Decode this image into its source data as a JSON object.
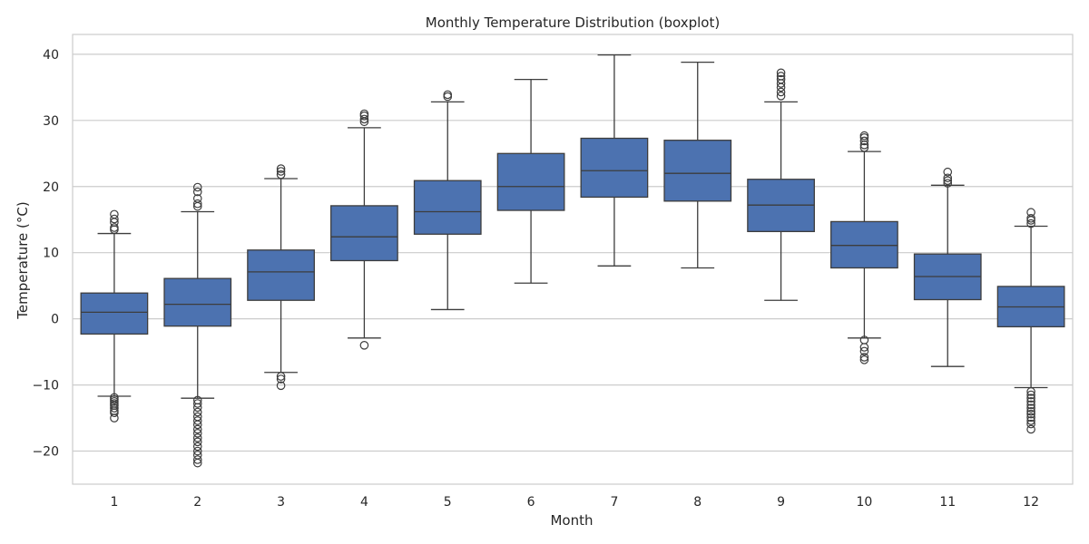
{
  "chart_data": {
    "type": "boxplot",
    "title": "Monthly Temperature Distribution (boxplot)",
    "xlabel": "Month",
    "ylabel": "Temperature (°C)",
    "ylim": [
      -25,
      43
    ],
    "yticks": [
      -20,
      -10,
      0,
      10,
      20,
      30,
      40
    ],
    "grid": true,
    "colors": {
      "box_fill": "#4c72b0",
      "line": "#3d3d3d",
      "grid": "#cccccc",
      "frame": "#cccccc"
    },
    "categories": [
      "1",
      "2",
      "3",
      "4",
      "5",
      "6",
      "7",
      "8",
      "9",
      "10",
      "11",
      "12"
    ],
    "boxes": [
      {
        "label": "1",
        "whisker_low": -11.7,
        "q1": -2.3,
        "median": 1.0,
        "q3": 3.9,
        "whisker_high": 12.9,
        "outliers": [
          13.5,
          13.8,
          14.6,
          15.1,
          15.8,
          -11.9,
          -12.2,
          -12.5,
          -12.8,
          -13.1,
          -13.5,
          -13.9,
          -14.2,
          -15.0
        ]
      },
      {
        "label": "2",
        "whisker_low": -12.0,
        "q1": -1.1,
        "median": 2.2,
        "q3": 6.1,
        "whisker_high": 16.2,
        "outliers": [
          17.0,
          17.4,
          18.2,
          19.2,
          19.9,
          -12.3,
          -12.8,
          -13.4,
          -14.1,
          -14.8,
          -15.4,
          -16.0,
          -16.7,
          -17.3,
          -18.0,
          -18.6,
          -19.3,
          -20.0,
          -20.6,
          -21.3,
          -21.8
        ]
      },
      {
        "label": "3",
        "whisker_low": -8.1,
        "q1": 2.8,
        "median": 7.1,
        "q3": 10.4,
        "whisker_high": 21.2,
        "outliers": [
          21.8,
          22.3,
          22.7,
          -8.7,
          -9.1,
          -10.1
        ]
      },
      {
        "label": "4",
        "whisker_low": -2.9,
        "q1": 8.8,
        "median": 12.4,
        "q3": 17.1,
        "whisker_high": 28.9,
        "outliers": [
          29.8,
          30.2,
          30.7,
          31.0,
          -4.0
        ]
      },
      {
        "label": "5",
        "whisker_low": 1.4,
        "q1": 12.8,
        "median": 16.2,
        "q3": 20.9,
        "whisker_high": 32.8,
        "outliers": [
          33.6,
          33.9
        ]
      },
      {
        "label": "6",
        "whisker_low": 5.4,
        "q1": 16.4,
        "median": 20.0,
        "q3": 25.0,
        "whisker_high": 36.2,
        "outliers": []
      },
      {
        "label": "7",
        "whisker_low": 8.0,
        "q1": 18.4,
        "median": 22.4,
        "q3": 27.3,
        "whisker_high": 39.9,
        "outliers": []
      },
      {
        "label": "8",
        "whisker_low": 7.7,
        "q1": 17.8,
        "median": 22.0,
        "q3": 27.0,
        "whisker_high": 38.8,
        "outliers": []
      },
      {
        "label": "9",
        "whisker_low": 2.8,
        "q1": 13.2,
        "median": 17.2,
        "q3": 21.1,
        "whisker_high": 32.8,
        "outliers": [
          33.7,
          34.3,
          35.0,
          35.6,
          36.2,
          36.7,
          37.2
        ]
      },
      {
        "label": "10",
        "whisker_low": -2.9,
        "q1": 7.7,
        "median": 11.1,
        "q3": 14.7,
        "whisker_high": 25.3,
        "outliers": [
          25.9,
          26.3,
          26.9,
          27.4,
          27.7,
          -3.2,
          -4.3,
          -4.9,
          -5.8,
          -6.2
        ]
      },
      {
        "label": "11",
        "whisker_low": -7.2,
        "q1": 2.9,
        "median": 6.4,
        "q3": 9.8,
        "whisker_high": 20.2,
        "outliers": [
          20.5,
          20.9,
          21.3,
          22.2
        ]
      },
      {
        "label": "12",
        "whisker_low": -10.4,
        "q1": -1.2,
        "median": 1.8,
        "q3": 4.9,
        "whisker_high": 14.0,
        "outliers": [
          14.4,
          14.9,
          15.2,
          16.1,
          -11.0,
          -11.5,
          -12.0,
          -12.5,
          -13.0,
          -13.5,
          -14.0,
          -14.4,
          -14.9,
          -15.4,
          -15.9,
          -16.7
        ]
      }
    ]
  }
}
